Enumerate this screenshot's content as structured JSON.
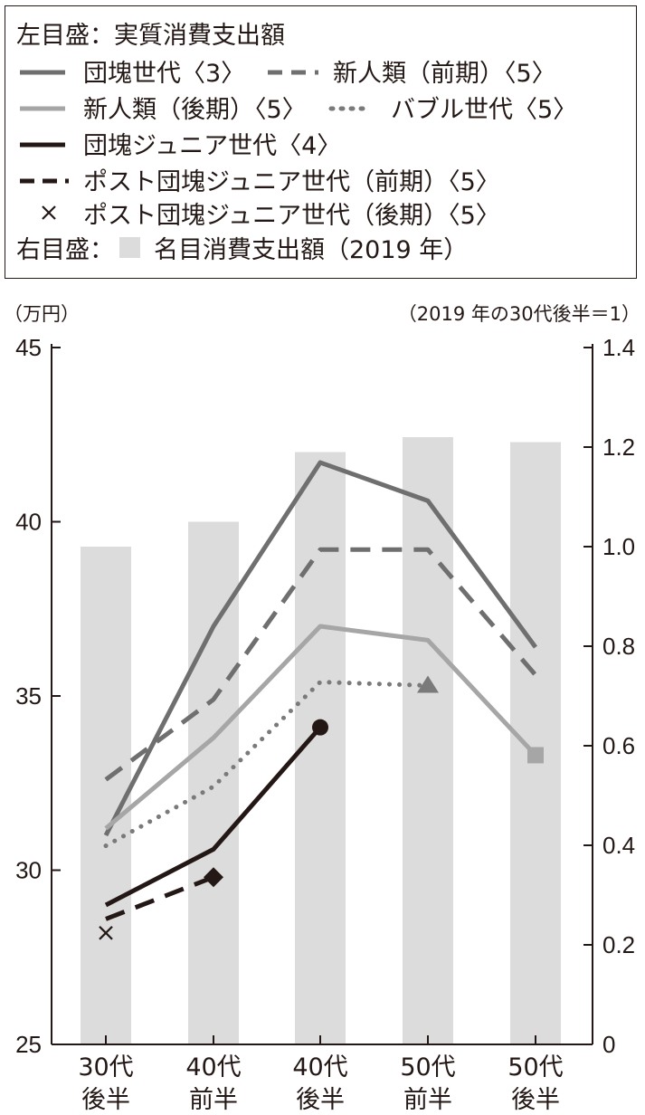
{
  "legend": {
    "left_axis_title": "左目盛：実質消費支出額",
    "right_axis_title": "右目盛：",
    "bar_label": "名目消費支出額（2019 年）"
  },
  "left_unit": "（万円）",
  "right_unit": "（2019 年の30代後半＝1）",
  "chart_data": {
    "type": "bar+line",
    "categories": [
      [
        "30代",
        "後半"
      ],
      [
        "40代",
        "前半"
      ],
      [
        "40代",
        "後半"
      ],
      [
        "50代",
        "前半"
      ],
      [
        "50代",
        "後半"
      ]
    ],
    "left_axis": {
      "ylim": [
        25,
        45
      ],
      "ticks": [
        25,
        30,
        35,
        40,
        45
      ]
    },
    "right_axis": {
      "ylim": [
        0,
        1.4
      ],
      "ticks": [
        "0",
        "0.2",
        "0.4",
        "0.6",
        "0.8",
        "1.0",
        "1.2",
        "1.4"
      ]
    },
    "bars": {
      "name": "名目消費支出額（2019 年）",
      "axis": "right",
      "color": "#dcdcdc",
      "values": [
        1.0,
        1.05,
        1.19,
        1.22,
        1.21
      ]
    },
    "series": [
      {
        "name": "団塊世代〈3〉",
        "color": "#6f6f6f",
        "style": "solid",
        "values": [
          31.0,
          37.0,
          41.7,
          40.6,
          36.4
        ],
        "marker": "none"
      },
      {
        "name": "新人類（前期）〈5〉",
        "color": "#6f6f6f",
        "style": "dashed",
        "values": [
          32.6,
          34.9,
          39.2,
          39.2,
          35.6
        ],
        "marker": "none"
      },
      {
        "name": "新人類（後期）〈5〉",
        "color": "#a6a6a6",
        "style": "solid",
        "values": [
          31.2,
          33.8,
          37.0,
          36.6,
          33.3
        ],
        "marker": "square"
      },
      {
        "name": "バブル世代〈5〉",
        "color": "#7a7a7a",
        "style": "dotted",
        "values": [
          30.7,
          32.4,
          35.4,
          35.3,
          null
        ],
        "marker": "triangle"
      },
      {
        "name": "団塊ジュニア世代〈4〉",
        "color": "#231815",
        "style": "solid",
        "values": [
          29.0,
          30.6,
          34.1,
          null,
          null
        ],
        "marker": "circle"
      },
      {
        "name": "ポスト団塊ジュニア世代（前期）〈5〉",
        "color": "#231815",
        "style": "dashed",
        "values": [
          28.6,
          29.8,
          null,
          null,
          null
        ],
        "marker": "diamond"
      },
      {
        "name": "ポスト団塊ジュニア世代（後期）〈5〉",
        "color": "#231815",
        "style": "cross",
        "values": [
          28.2,
          null,
          null,
          null,
          null
        ],
        "marker": "x"
      }
    ]
  }
}
